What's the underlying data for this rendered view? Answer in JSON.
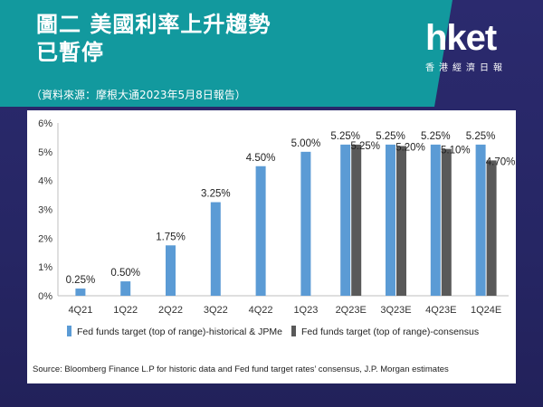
{
  "header": {
    "title_line1": "圖二 美國利率上升趨勢",
    "title_line2": "已暫停",
    "source": "（資料來源：摩根大通2023年5月8日報告）"
  },
  "logo": {
    "brand": "hket",
    "subtitle": "香港經濟日報"
  },
  "footnote": "Source: Bloomberg Finance L.P for historic data and Fed fund target rates’ consensus, J.P. Morgan estimates",
  "colors": {
    "blue": "#5b9bd5",
    "gray": "#595959",
    "panel": "#ffffff",
    "banner": "#12999e"
  },
  "chart_data": {
    "type": "bar",
    "categories": [
      "4Q21",
      "1Q22",
      "2Q22",
      "3Q22",
      "4Q22",
      "1Q23",
      "2Q23E",
      "3Q23E",
      "4Q23E",
      "1Q24E"
    ],
    "series": [
      {
        "name": "Fed funds target (top of range)-historical & JPMe",
        "values": [
          0.25,
          0.5,
          1.75,
          3.25,
          4.5,
          5.0,
          5.25,
          5.25,
          5.25,
          5.25
        ],
        "labels": [
          "0.25%",
          "0.50%",
          "1.75%",
          "3.25%",
          "4.50%",
          "5.00%",
          "5.25%",
          "5.25%",
          "5.25%",
          "5.25%"
        ],
        "color": "#5b9bd5"
      },
      {
        "name": "Fed funds target (top of range)-consensus",
        "values": [
          null,
          null,
          null,
          null,
          null,
          null,
          5.25,
          5.2,
          5.1,
          4.7
        ],
        "labels": [
          "",
          "",
          "",
          "",
          "",
          "",
          "5.25%",
          "5.20%",
          "5.10%",
          "4.70%"
        ],
        "color": "#595959"
      }
    ],
    "ylim": [
      0,
      6
    ],
    "yticks": [
      "0%",
      "1%",
      "2%",
      "3%",
      "4%",
      "5%",
      "6%"
    ],
    "legend_position": "bottom",
    "grid": false
  }
}
